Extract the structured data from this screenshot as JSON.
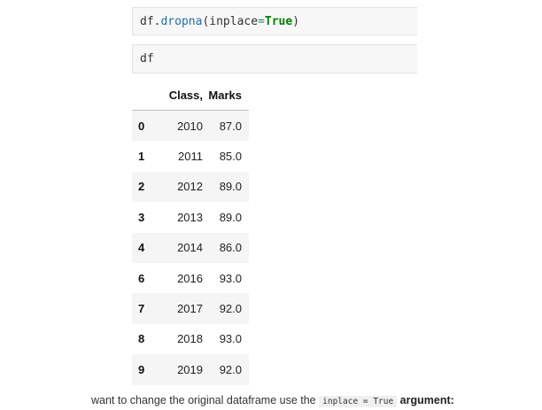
{
  "cells": [
    {
      "tokens": [
        {
          "text": "df",
          "kind": "var"
        },
        {
          "text": ".",
          "kind": "punct"
        },
        {
          "text": "dropna",
          "kind": "fn"
        },
        {
          "text": "(",
          "kind": "punct"
        },
        {
          "text": "inplace",
          "kind": "var"
        },
        {
          "text": "=",
          "kind": "kw"
        },
        {
          "text": "True",
          "kind": "bool"
        },
        {
          "text": ")",
          "kind": "punct"
        }
      ]
    },
    {
      "tokens": [
        {
          "text": "df",
          "kind": "var"
        }
      ]
    }
  ],
  "table": {
    "columns": [
      "",
      "Class,",
      "Marks"
    ],
    "rows": [
      {
        "index": "0",
        "class": "2010",
        "marks": "87.0"
      },
      {
        "index": "1",
        "class": "2011",
        "marks": "85.0"
      },
      {
        "index": "2",
        "class": "2012",
        "marks": "89.0"
      },
      {
        "index": "3",
        "class": "2013",
        "marks": "89.0"
      },
      {
        "index": "4",
        "class": "2014",
        "marks": "86.0"
      },
      {
        "index": "6",
        "class": "2016",
        "marks": "93.0"
      },
      {
        "index": "7",
        "class": "2017",
        "marks": "92.0"
      },
      {
        "index": "8",
        "class": "2018",
        "marks": "93.0"
      },
      {
        "index": "9",
        "class": "2019",
        "marks": "92.0"
      }
    ]
  },
  "caption": {
    "prefix": "want to change the original dataframe use the ",
    "code": "inplace = True",
    "suffix": " argument:"
  },
  "colors": {
    "code_bg": "#f7f7f7",
    "keyword_fn": "#1f6fb2",
    "keyword_bool": "#008000",
    "row_stripe": "#f5f5f5"
  }
}
